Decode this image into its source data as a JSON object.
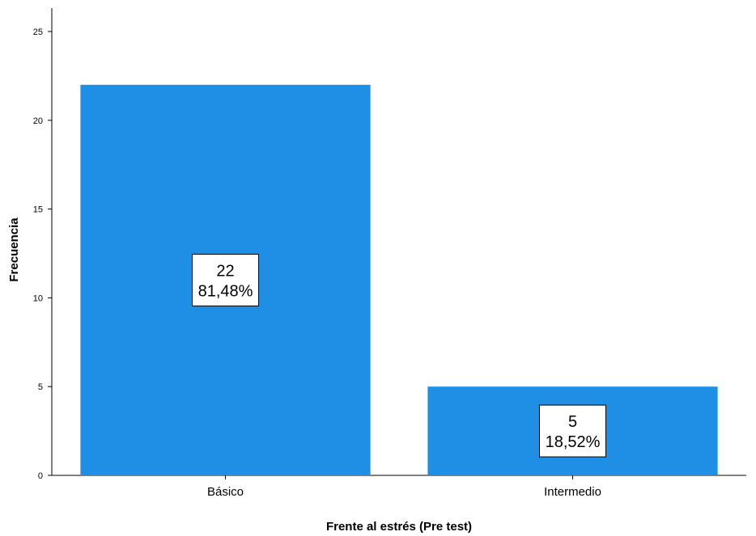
{
  "chart_data": {
    "type": "bar",
    "categories": [
      "Básico",
      "Intermedio"
    ],
    "values": [
      22,
      5
    ],
    "data_labels": [
      {
        "count": "22",
        "percent": "81,48%"
      },
      {
        "count": "5",
        "percent": "18,52%"
      }
    ],
    "xlabel": "Frente al estrés (Pre test)",
    "ylabel": "Frecuencia",
    "ylim": [
      0,
      25
    ],
    "yticks": [
      "0",
      "5",
      "10",
      "15",
      "20",
      "25"
    ],
    "grid": false,
    "bar_color": "#1f8fe5"
  }
}
